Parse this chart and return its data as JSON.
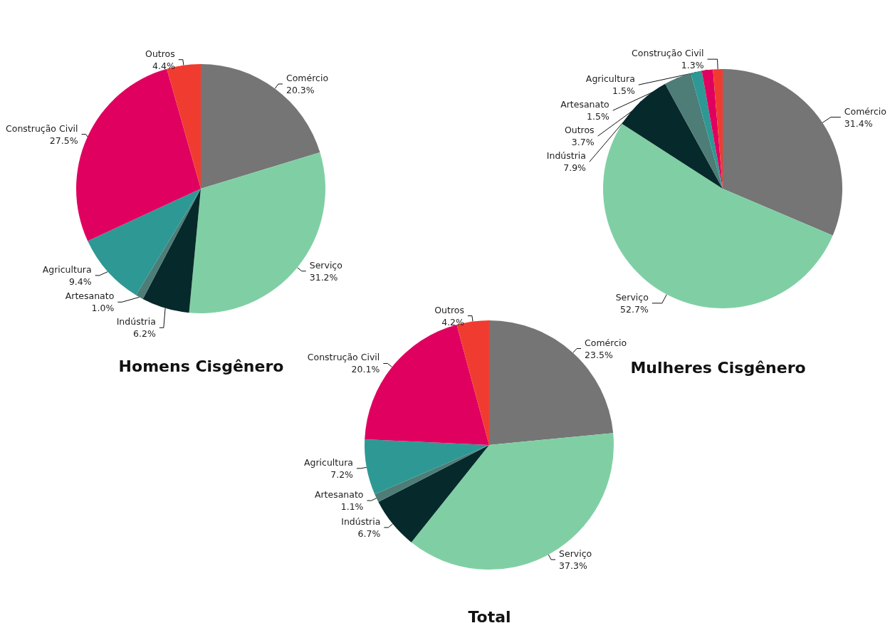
{
  "chart_data": [
    {
      "type": "pie",
      "title": "Homens Cisgênero",
      "categories": [
        "Comércio",
        "Serviço",
        "Indústria",
        "Artesanato",
        "Agricultura",
        "Construção Civil",
        "Outros"
      ],
      "values": [
        20.3,
        31.2,
        6.2,
        1.0,
        9.4,
        27.5,
        4.4
      ],
      "value_labels": [
        "20.3%",
        "31.2%",
        "6.2%",
        "1.0%",
        "9.4%",
        "27.5%",
        "4.4%"
      ],
      "colors": [
        "#757575",
        "#80cfa4",
        "#06292b",
        "#4e7c76",
        "#2e9994",
        "#e0005f",
        "#f03c30"
      ]
    },
    {
      "type": "pie",
      "title": "Mulheres Cisgênero",
      "categories": [
        "Comércio",
        "Serviço",
        "Indústria",
        "Outros",
        "Artesanato",
        "Agricultura",
        "Construção Civil"
      ],
      "values": [
        31.4,
        52.7,
        7.9,
        3.7,
        1.5,
        1.5,
        1.3
      ],
      "value_labels": [
        "31.4%",
        "52.7%",
        "7.9%",
        "3.7%",
        "1.5%",
        "1.5%",
        "1.3%"
      ],
      "colors": [
        "#757575",
        "#80cfa4",
        "#06292b",
        "#4e7c76",
        "#2e9994",
        "#e0005f",
        "#f03c30"
      ]
    },
    {
      "type": "pie",
      "title": "Total",
      "categories": [
        "Comércio",
        "Serviço",
        "Indústria",
        "Artesanato",
        "Agricultura",
        "Construção Civil",
        "Outros"
      ],
      "values": [
        23.5,
        37.3,
        6.7,
        1.1,
        7.2,
        20.1,
        4.2
      ],
      "value_labels": [
        "23.5%",
        "37.3%",
        "6.7%",
        "1.1%",
        "7.2%",
        "20.1%",
        "4.2%"
      ],
      "colors": [
        "#757575",
        "#80cfa4",
        "#06292b",
        "#4e7c76",
        "#2e9994",
        "#e0005f",
        "#f03c30"
      ]
    }
  ]
}
